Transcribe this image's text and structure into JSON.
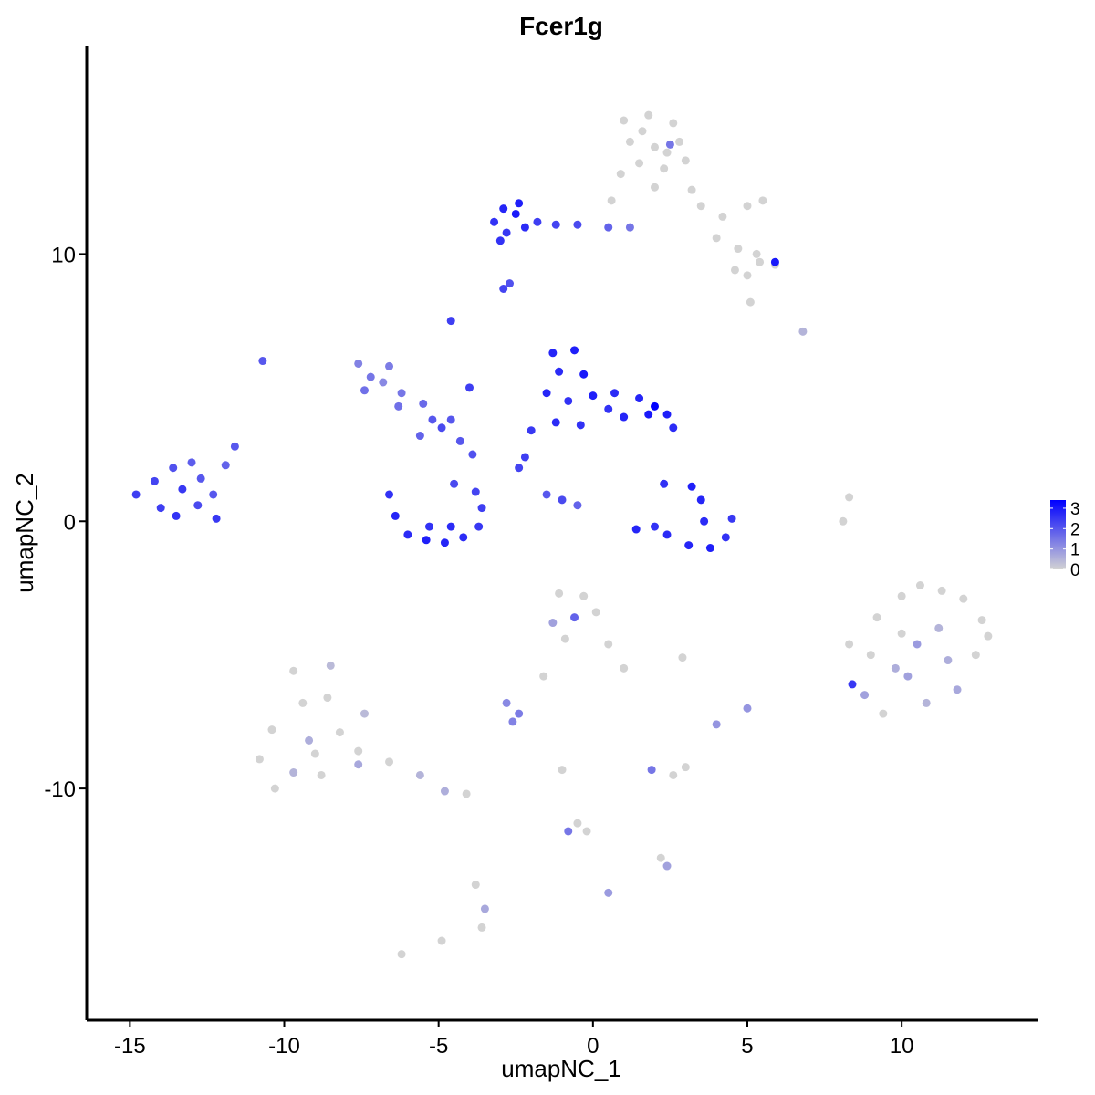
{
  "chart_data": {
    "type": "scatter",
    "title": "Fcer1g",
    "x_label": "umapNC_1",
    "y_label": "umapNC_2",
    "xlim": [
      -16.4,
      14.4
    ],
    "ylim": [
      -18.67,
      17.8
    ],
    "xticks": [
      -15,
      -10,
      -5,
      0,
      5,
      10
    ],
    "yticks": [
      -10,
      0,
      10
    ],
    "color_low": "#d3d3d3",
    "color_high": "#0000ff",
    "colorlim": [
      0,
      3.4
    ],
    "colorbar_ticks": [
      0,
      1,
      2,
      3
    ],
    "x": [
      1.0,
      1.8,
      2.6,
      1.2,
      2.0,
      2.8,
      1.5,
      2.3,
      3.0,
      0.9,
      2.0,
      3.2,
      1.6,
      2.4,
      0.6,
      2.5,
      3.5,
      4.2,
      5.0,
      5.5,
      4.0,
      4.7,
      5.4,
      5.9,
      5.0,
      4.6,
      5.3,
      5.9,
      -3.2,
      -2.9,
      -2.5,
      -2.2,
      -2.8,
      -1.8,
      -1.2,
      -0.5,
      0.5,
      1.2,
      -2.4,
      -3.0,
      -2.9,
      -2.7,
      -4.6,
      -4.0,
      -10.7,
      -7.6,
      -7.2,
      -6.8,
      -7.4,
      -6.6,
      -6.2,
      -5.5,
      -5.2,
      -4.6,
      -4.9,
      -5.6,
      -6.3,
      -14.8,
      -14.2,
      -13.6,
      -13.0,
      -13.3,
      -12.7,
      -14.0,
      -13.5,
      -12.8,
      -12.3,
      -12.2,
      -11.9,
      -11.6,
      -6.6,
      -6.4,
      -6.0,
      -5.4,
      -4.8,
      -4.2,
      -3.7,
      -3.6,
      -3.8,
      -4.5,
      -5.3,
      -4.6,
      -3.9,
      -4.3,
      -1.3,
      -0.6,
      -1.1,
      -0.3,
      -1.5,
      -0.8,
      0.0,
      0.7,
      1.5,
      2.0,
      2.4,
      2.6,
      1.8,
      1.0,
      -0.4,
      -1.2,
      -2.0,
      -2.2,
      -2.4,
      0.5,
      -1.5,
      -1.0,
      -0.5,
      2.3,
      3.2,
      3.5,
      3.6,
      4.5,
      4.3,
      3.8,
      3.1,
      2.4,
      2.0,
      1.4,
      8.3,
      8.1,
      8.3,
      8.8,
      9.2,
      9.8,
      10.0,
      10.6,
      11.3,
      12.0,
      12.6,
      12.4,
      11.8,
      10.8,
      9.4,
      10.5,
      11.2,
      10.0,
      11.5,
      9.0,
      10.2,
      12.8,
      8.4,
      -9.7,
      -8.5,
      -9.4,
      -8.6,
      -10.4,
      -9.2,
      -8.2,
      -7.6,
      -10.8,
      -9.7,
      -8.8,
      -7.6,
      -10.3,
      -6.6,
      -5.6,
      -4.8,
      -4.1,
      -7.4,
      -9.0,
      -1.1,
      -0.3,
      -1.3,
      -0.6,
      0.1,
      -0.9,
      0.5,
      1.0,
      -2.8,
      -2.4,
      -2.6,
      -1.6,
      2.9,
      5.0,
      4.0,
      1.9,
      2.6,
      3.0,
      -1.0,
      -0.5,
      -0.2,
      -0.8,
      2.2,
      2.4,
      -3.8,
      -3.5,
      -3.6,
      -6.2,
      -4.9,
      0.5,
      6.8,
      5.1
    ],
    "y": [
      15.0,
      15.2,
      14.9,
      14.2,
      14.0,
      14.2,
      13.4,
      13.2,
      13.5,
      13.0,
      12.5,
      12.4,
      14.6,
      13.8,
      12.0,
      14.1,
      11.8,
      11.4,
      11.8,
      12.0,
      10.6,
      10.2,
      9.7,
      9.6,
      9.2,
      9.4,
      10.0,
      9.7,
      11.2,
      11.7,
      11.5,
      11.0,
      10.8,
      11.2,
      11.1,
      11.1,
      11.0,
      11.0,
      11.9,
      10.5,
      8.7,
      8.9,
      7.5,
      5.0,
      6.0,
      5.9,
      5.4,
      5.2,
      4.9,
      5.8,
      4.8,
      4.4,
      3.8,
      3.8,
      3.5,
      3.2,
      4.3,
      1.0,
      1.5,
      2.0,
      2.2,
      1.2,
      1.6,
      0.5,
      0.2,
      0.6,
      1.0,
      0.1,
      2.1,
      2.8,
      1.0,
      0.2,
      -0.5,
      -0.7,
      -0.8,
      -0.6,
      -0.2,
      0.5,
      1.1,
      1.4,
      -0.2,
      -0.2,
      2.5,
      3.0,
      6.3,
      6.4,
      5.6,
      5.5,
      4.8,
      4.5,
      4.7,
      4.8,
      4.6,
      4.3,
      4.0,
      3.5,
      4.0,
      3.9,
      3.6,
      3.7,
      3.4,
      2.4,
      2.0,
      4.2,
      1.0,
      0.8,
      0.6,
      1.4,
      1.3,
      0.8,
      0.0,
      0.1,
      -0.6,
      -1.0,
      -0.9,
      -0.5,
      -0.2,
      -0.3,
      0.9,
      0,
      -4.6,
      -6.5,
      -3.6,
      -5.5,
      -2.8,
      -2.4,
      -2.6,
      -2.9,
      -3.7,
      -5.0,
      -6.3,
      -6.8,
      -7.2,
      -4.6,
      -4.0,
      -4.2,
      -5.2,
      -5.0,
      -5.8,
      -4.3,
      -6.1,
      -5.6,
      -5.4,
      -6.8,
      -6.6,
      -7.8,
      -8.2,
      -7.9,
      -8.6,
      -8.9,
      -9.4,
      -9.5,
      -9.1,
      -10.0,
      -9.0,
      -9.5,
      -10.1,
      -10.2,
      -7.2,
      -8.7,
      -2.7,
      -2.8,
      -3.8,
      -3.6,
      -3.4,
      -4.4,
      -4.6,
      -5.5,
      -6.8,
      -7.2,
      -7.5,
      -5.8,
      -5.1,
      -7.0,
      -7.6,
      -9.3,
      -9.5,
      -9.2,
      -9.3,
      -11.3,
      -11.6,
      -11.6,
      -12.6,
      -12.9,
      -13.6,
      -14.5,
      -15.2,
      -16.2,
      -15.7,
      -13.9,
      7.1,
      8.2
    ],
    "values": [
      0,
      0,
      0,
      0,
      0,
      0,
      0,
      0,
      0,
      0,
      0,
      0,
      0,
      0,
      0,
      1.5,
      0,
      0,
      0,
      0,
      0,
      0,
      0,
      0,
      0,
      0,
      0,
      3,
      2.6,
      2.8,
      3,
      2.7,
      2.5,
      2.4,
      2.3,
      2.2,
      1.8,
      1.5,
      2.9,
      2.6,
      2.3,
      2.1,
      2.4,
      2.4,
      2.0,
      1.3,
      1.5,
      1.2,
      1.6,
      1.4,
      1.5,
      1.7,
      2.0,
      2.0,
      2.2,
      1.8,
      1.6,
      2.4,
      2.3,
      2.1,
      1.9,
      2.5,
      2.0,
      2.4,
      2.6,
      2.2,
      2.0,
      2.5,
      1.8,
      2.0,
      2.6,
      2.8,
      2.7,
      2.9,
      2.8,
      2.7,
      2.5,
      2.4,
      2.3,
      2.2,
      2.6,
      2.7,
      2.1,
      2.0,
      2.8,
      2.9,
      2.7,
      3.0,
      2.8,
      2.6,
      2.9,
      2.7,
      2.8,
      3.4,
      2.9,
      2.7,
      3.0,
      2.8,
      2.6,
      2.7,
      2.5,
      2.4,
      2.3,
      2.6,
      2.0,
      2.2,
      1.8,
      2.6,
      2.9,
      2.8,
      2.7,
      2.5,
      2.6,
      2.9,
      2.8,
      2.7,
      2.6,
      2.8,
      0,
      0,
      0,
      0.8,
      0,
      0.6,
      0,
      0,
      0,
      0,
      0,
      0,
      0.7,
      0.5,
      0,
      0.9,
      0.5,
      0,
      0.6,
      0,
      0.8,
      0,
      2.5,
      0,
      0.4,
      0,
      0,
      0,
      0.6,
      0,
      0,
      0,
      0.5,
      0,
      0.7,
      0,
      0,
      0.5,
      0.6,
      0,
      0.4,
      0,
      0,
      0,
      0.8,
      1.8,
      0,
      0,
      0,
      0,
      1.2,
      1.4,
      1.3,
      0,
      0,
      1.0,
      1.0,
      1.5,
      0,
      0,
      0,
      0,
      0,
      1.5,
      0,
      0.8,
      0,
      0.7,
      0,
      0,
      0,
      0.9,
      0.5,
      0
    ]
  }
}
